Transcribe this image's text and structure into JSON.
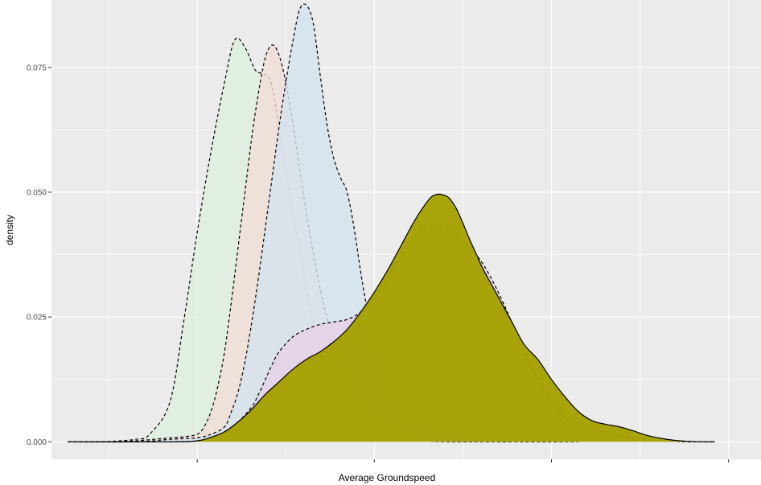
{
  "chart_data": {
    "type": "area",
    "xlabel": "Average Groundspeed",
    "ylabel": "density",
    "title": "",
    "xlim": [
      0,
      100
    ],
    "ylim": [
      -0.0035,
      0.0885
    ],
    "x_tick_values": [
      24,
      50,
      76,
      102
    ],
    "y_ticks": [
      {
        "value": 0.0,
        "label": "0.000"
      },
      {
        "value": 0.025,
        "label": "0.025"
      },
      {
        "value": 0.05,
        "label": "0.050"
      },
      {
        "value": 0.075,
        "label": "0.075"
      }
    ],
    "grid": true,
    "legend": "none",
    "panel_background": "#ebebeb",
    "grid_color": "#ffffff",
    "series": [
      {
        "fill": "#dff0e2",
        "stroke": "#000000",
        "dashed": true,
        "opacity": 0.85,
        "x": [
          5,
          10,
          15,
          17,
          20,
          22,
          24,
          26,
          28,
          29.5,
          31,
          32.5,
          33.5,
          34.5,
          35,
          36,
          37,
          38,
          39,
          40,
          41,
          42,
          43,
          44,
          45,
          46,
          47,
          48,
          49,
          50,
          52,
          54,
          56,
          58,
          60,
          65,
          70
        ],
        "y": [
          0,
          0,
          0.0005,
          0.0015,
          0.008,
          0.024,
          0.042,
          0.058,
          0.072,
          0.0805,
          0.079,
          0.0745,
          0.0738,
          0.073,
          0.071,
          0.063,
          0.054,
          0.046,
          0.039,
          0.031,
          0.024,
          0.018,
          0.013,
          0.0095,
          0.0072,
          0.0055,
          0.004,
          0.003,
          0.002,
          0.0015,
          0.001,
          0.0006,
          0.0003,
          0.0001,
          0,
          0,
          0
        ]
      },
      {
        "fill": "#f1ddd7",
        "stroke": "#000000",
        "dashed": true,
        "opacity": 0.8,
        "x": [
          5,
          10,
          15,
          20,
          22,
          24,
          25,
          26,
          27,
          28,
          29,
          30,
          31,
          32,
          33,
          34,
          35,
          36,
          37,
          38,
          39,
          40,
          41,
          42,
          43,
          44,
          45,
          46,
          47,
          48,
          49,
          50,
          52,
          54,
          56,
          58,
          60,
          62,
          64,
          70
        ],
        "y": [
          0,
          0,
          0.0002,
          0.0008,
          0.001,
          0.0015,
          0.003,
          0.006,
          0.011,
          0.018,
          0.028,
          0.039,
          0.05,
          0.061,
          0.07,
          0.077,
          0.0795,
          0.0775,
          0.072,
          0.064,
          0.055,
          0.046,
          0.038,
          0.031,
          0.025,
          0.02,
          0.016,
          0.013,
          0.0105,
          0.0085,
          0.007,
          0.0058,
          0.0042,
          0.0028,
          0.0015,
          0.0006,
          0.0002,
          0,
          0,
          0
        ]
      },
      {
        "fill": "#d5e3ee",
        "stroke": "#000000",
        "dashed": true,
        "opacity": 0.8,
        "x": [
          5,
          15,
          20,
          24,
          26,
          28,
          29,
          30,
          31,
          32,
          33,
          34,
          35,
          36,
          37,
          38,
          39,
          40,
          41,
          42,
          43,
          44,
          45,
          46,
          47,
          48,
          49,
          50,
          52,
          54,
          56,
          58,
          60,
          62,
          64,
          66,
          70,
          80
        ],
        "y": [
          0,
          0,
          0.0005,
          0.0008,
          0.0015,
          0.003,
          0.006,
          0.01,
          0.016,
          0.024,
          0.033,
          0.043,
          0.053,
          0.063,
          0.072,
          0.08,
          0.0865,
          0.0875,
          0.084,
          0.074,
          0.064,
          0.057,
          0.053,
          0.05,
          0.043,
          0.034,
          0.026,
          0.019,
          0.01,
          0.005,
          0.0035,
          0.003,
          0.002,
          0.0012,
          0.0005,
          0.0002,
          0,
          0
        ]
      },
      {
        "fill": "#e4d1e8",
        "stroke": "#000000",
        "dashed": true,
        "opacity": 0.9,
        "x": [
          5,
          20,
          24,
          26,
          28,
          30,
          32,
          33,
          34,
          35,
          36,
          38,
          40,
          42,
          44,
          46,
          48,
          50,
          52,
          54,
          56,
          58,
          60,
          62,
          64,
          66,
          68,
          70,
          72,
          74,
          76,
          78,
          80,
          82,
          84,
          86,
          88,
          90,
          92,
          94,
          96,
          98,
          100
        ],
        "y": [
          0,
          0,
          0.0002,
          0.0008,
          0.002,
          0.004,
          0.007,
          0.0095,
          0.0125,
          0.0155,
          0.018,
          0.021,
          0.0225,
          0.0235,
          0.024,
          0.0245,
          0.026,
          0.029,
          0.033,
          0.0375,
          0.0415,
          0.0432,
          0.0432,
          0.042,
          0.039,
          0.0355,
          0.0305,
          0.0245,
          0.018,
          0.0125,
          0.008,
          0.005,
          0.0035,
          0.0025,
          0.002,
          0.0014,
          0.0009,
          0.0005,
          0.0002,
          0.0001,
          0,
          0,
          0
        ]
      },
      {
        "fill": "#a4a000",
        "stroke": "#000000",
        "dashed": false,
        "opacity": 0.96,
        "x": [
          5,
          20,
          24,
          26,
          28,
          30,
          32,
          34,
          36,
          38,
          40,
          42,
          44,
          46,
          48,
          50,
          52,
          54,
          56,
          58,
          59,
          60,
          61,
          62,
          63,
          64,
          65,
          66,
          68,
          70,
          72,
          74,
          76,
          78,
          80,
          82,
          84,
          86,
          88,
          90,
          92,
          94,
          96,
          98,
          100
        ],
        "y": [
          0,
          0,
          0.0002,
          0.0009,
          0.002,
          0.004,
          0.0065,
          0.0095,
          0.012,
          0.0145,
          0.0165,
          0.018,
          0.02,
          0.0225,
          0.026,
          0.03,
          0.0345,
          0.0395,
          0.0445,
          0.0485,
          0.0495,
          0.0495,
          0.0488,
          0.0468,
          0.0438,
          0.0405,
          0.0375,
          0.0345,
          0.0295,
          0.0245,
          0.0195,
          0.0165,
          0.0125,
          0.009,
          0.006,
          0.0042,
          0.0035,
          0.003,
          0.0022,
          0.0013,
          0.0007,
          0.0003,
          0.0001,
          0,
          0
        ]
      }
    ]
  }
}
